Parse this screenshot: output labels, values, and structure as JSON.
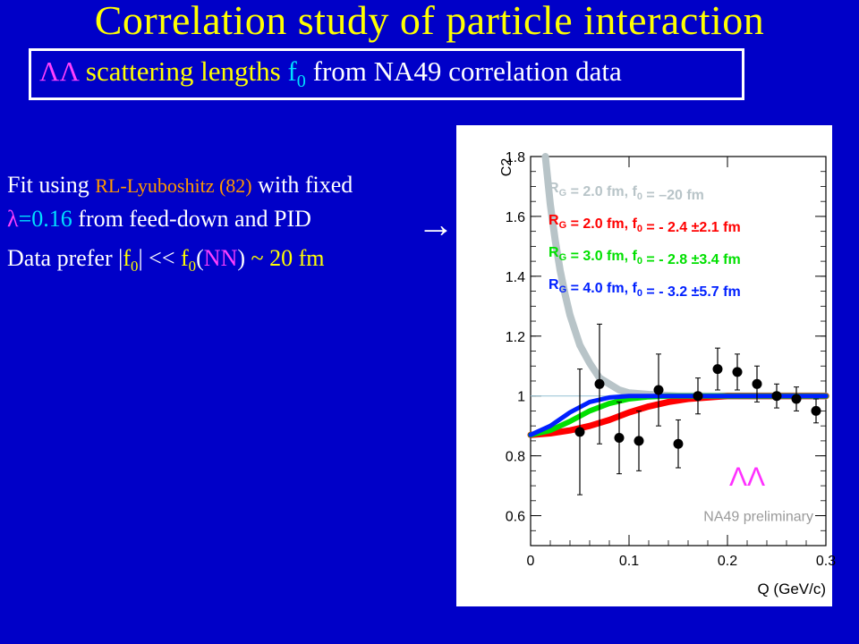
{
  "title": "Correlation study of particle interaction",
  "subtitle": {
    "lambda": "ΛΛ",
    "text": "scattering lengths",
    "f": "f",
    "f_sub": "0",
    "rest": "from NA49 correlation data"
  },
  "fit_text": {
    "line1_a": "Fit using",
    "line1_ref": "RL-Lyuboshitz (82)",
    "line1_b": "with fixed",
    "line2_lambda": "λ",
    "line2_val": "=0.16",
    "line2_rest": "from feed-down and PID",
    "line3_a": "Data prefer |",
    "line3_f": "f",
    "line3_sub": "0",
    "line3_b": "| << ",
    "line3_f2": "f",
    "line3_sub2": "0",
    "line3_paren_open": "(",
    "line3_nn": "NN",
    "line3_paren_close": ")",
    "line3_c": " ~ 20 fm"
  },
  "arrow": "→",
  "chart_data": {
    "type": "scatter",
    "xlabel": "Q (GeV/c)",
    "ylabel": "C2",
    "xlim": [
      0,
      0.3
    ],
    "ylim": [
      0.5,
      1.8
    ],
    "x_ticks": [
      "0",
      "0.1",
      "0.2",
      "0.3"
    ],
    "y_ticks": [
      "0.6",
      "0.8",
      "1",
      "1.2",
      "1.4",
      "1.6",
      "1.8"
    ],
    "points": [
      {
        "x": 0.05,
        "y": 0.88,
        "err": 0.21
      },
      {
        "x": 0.07,
        "y": 1.04,
        "err": 0.2
      },
      {
        "x": 0.09,
        "y": 0.86,
        "err": 0.12
      },
      {
        "x": 0.11,
        "y": 0.85,
        "err": 0.1
      },
      {
        "x": 0.13,
        "y": 1.02,
        "err": 0.12
      },
      {
        "x": 0.15,
        "y": 0.84,
        "err": 0.08
      },
      {
        "x": 0.17,
        "y": 1.0,
        "err": 0.06
      },
      {
        "x": 0.19,
        "y": 1.09,
        "err": 0.07
      },
      {
        "x": 0.21,
        "y": 1.08,
        "err": 0.06
      },
      {
        "x": 0.23,
        "y": 1.04,
        "err": 0.06
      },
      {
        "x": 0.25,
        "y": 1.0,
        "err": 0.04
      },
      {
        "x": 0.27,
        "y": 0.99,
        "err": 0.04
      },
      {
        "x": 0.29,
        "y": 0.95,
        "err": 0.04
      }
    ],
    "series": [
      {
        "name": "R_G = 2.0 fm, f_0 = -20 fm",
        "color": "#b8c4c8",
        "x": [
          0.015,
          0.02,
          0.025,
          0.03,
          0.035,
          0.04,
          0.045,
          0.05,
          0.06,
          0.07,
          0.08,
          0.09,
          0.1,
          0.12,
          0.15,
          0.2,
          0.3
        ],
        "y": [
          1.8,
          1.64,
          1.52,
          1.42,
          1.34,
          1.27,
          1.22,
          1.17,
          1.11,
          1.06,
          1.04,
          1.02,
          1.01,
          1.005,
          1.0,
          1.0,
          1.0
        ]
      },
      {
        "name": "R_G = 2.0 fm, f_0 = - 2.4 ±2.1 fm",
        "color": "#ff0000",
        "x": [
          0,
          0.02,
          0.04,
          0.06,
          0.08,
          0.1,
          0.12,
          0.14,
          0.16,
          0.18,
          0.2,
          0.25,
          0.3
        ],
        "y": [
          0.87,
          0.875,
          0.885,
          0.9,
          0.92,
          0.945,
          0.965,
          0.98,
          0.99,
          0.995,
          1.0,
          1.0,
          1.0
        ]
      },
      {
        "name": "R_G = 3.0 fm, f_0 = - 2.8 ±3.4 fm",
        "color": "#00e000",
        "x": [
          0,
          0.02,
          0.04,
          0.06,
          0.08,
          0.1,
          0.12,
          0.14,
          0.16,
          0.2,
          0.25,
          0.3
        ],
        "y": [
          0.87,
          0.885,
          0.915,
          0.95,
          0.975,
          0.99,
          0.997,
          1.0,
          1.0,
          1.0,
          1.0,
          1.0
        ]
      },
      {
        "name": "R_G = 4.0 fm, f_0 = - 3.2 ±5.7 fm",
        "color": "#0020ff",
        "x": [
          0,
          0.02,
          0.04,
          0.06,
          0.08,
          0.1,
          0.12,
          0.15,
          0.2,
          0.3
        ],
        "y": [
          0.87,
          0.9,
          0.945,
          0.98,
          0.995,
          1.0,
          1.0,
          1.0,
          1.0,
          1.0
        ]
      }
    ],
    "reference_line": 1.0,
    "legend": [
      {
        "r": "R",
        "rsub": "G",
        "text": " = 2.0 fm,  f",
        "fsub": "0",
        "tail": " = –20 fm",
        "color": "#b8c4c8"
      },
      {
        "r": "R",
        "rsub": "G",
        "text": " = 2.0 fm,  f",
        "fsub": "0",
        "tail": " = - 2.4 ±2.1 fm",
        "color": "#ff0000"
      },
      {
        "r": "R",
        "rsub": "G",
        "text": " = 3.0 fm,  f",
        "fsub": "0",
        "tail": " = - 2.8 ±3.4 fm",
        "color": "#00e000"
      },
      {
        "r": "R",
        "rsub": "G",
        "text": " = 4.0 fm,  f",
        "fsub": "0",
        "tail": " = - 3.2 ±5.7 fm",
        "color": "#0020ff"
      }
    ],
    "annotation_lambda": "ΛΛ",
    "annotation_prelim": "NA49 preliminary"
  }
}
